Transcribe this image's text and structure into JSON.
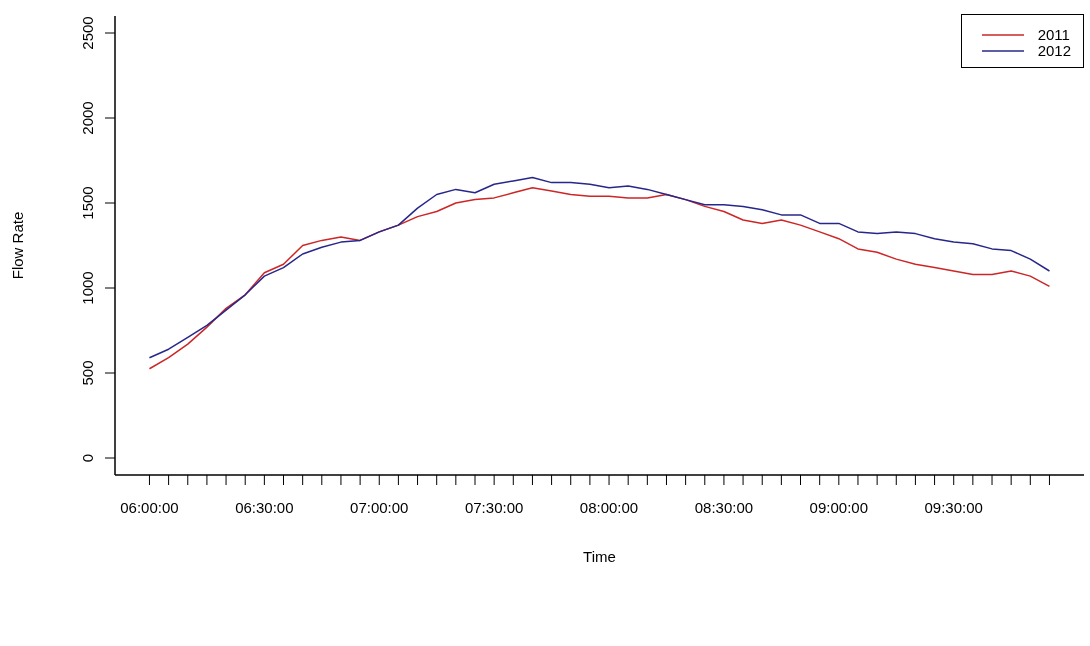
{
  "chart_data": {
    "type": "line",
    "xlabel": "Time",
    "ylabel": "Flow Rate",
    "x": [
      6,
      6.0833,
      6.1667,
      6.25,
      6.3333,
      6.4167,
      6.5,
      6.5833,
      6.6667,
      6.75,
      6.8333,
      6.9167,
      7,
      7.0833,
      7.1667,
      7.25,
      7.3333,
      7.4167,
      7.5,
      7.5833,
      7.6667,
      7.75,
      7.8333,
      7.9167,
      8,
      8.0833,
      8.1667,
      8.25,
      8.3333,
      8.4167,
      8.5,
      8.5833,
      8.6667,
      8.75,
      8.8333,
      8.9167,
      9,
      9.0833,
      9.1667,
      9.25,
      9.3333,
      9.4167,
      9.5,
      9.5833,
      9.6667,
      9.75,
      9.8333,
      9.9167
    ],
    "series": [
      {
        "name": "2011",
        "color": "#cd2626",
        "values": [
          525,
          590,
          670,
          770,
          880,
          960,
          1090,
          1140,
          1250,
          1280,
          1300,
          1280,
          1330,
          1370,
          1420,
          1450,
          1500,
          1520,
          1530,
          1560,
          1590,
          1570,
          1550,
          1540,
          1540,
          1530,
          1530,
          1550,
          1520,
          1480,
          1450,
          1400,
          1380,
          1400,
          1370,
          1330,
          1290,
          1230,
          1210,
          1170,
          1140,
          1120,
          1100,
          1080,
          1080,
          1100,
          1070,
          1010
        ]
      },
      {
        "name": "2012",
        "color": "#27278b",
        "values": [
          590,
          640,
          710,
          780,
          870,
          960,
          1070,
          1120,
          1200,
          1240,
          1270,
          1280,
          1330,
          1370,
          1470,
          1550,
          1580,
          1560,
          1610,
          1630,
          1650,
          1620,
          1620,
          1610,
          1590,
          1600,
          1580,
          1550,
          1520,
          1490,
          1490,
          1480,
          1460,
          1430,
          1430,
          1380,
          1380,
          1330,
          1320,
          1330,
          1320,
          1290,
          1270,
          1260,
          1230,
          1220,
          1170,
          1100
        ]
      }
    ],
    "xlim": [
      5.85,
      10.067
    ],
    "ylim": [
      -100,
      2600
    ],
    "xticks": [
      {
        "value": 6,
        "label": "06:00:00"
      },
      {
        "value": 6.0833,
        "label": null
      },
      {
        "value": 6.1667,
        "label": null
      },
      {
        "value": 6.25,
        "label": null
      },
      {
        "value": 6.3333,
        "label": null
      },
      {
        "value": 6.4167,
        "label": null
      },
      {
        "value": 6.5,
        "label": "06:30:00"
      },
      {
        "value": 6.5833,
        "label": null
      },
      {
        "value": 6.6667,
        "label": null
      },
      {
        "value": 6.75,
        "label": null
      },
      {
        "value": 6.8333,
        "label": null
      },
      {
        "value": 6.9167,
        "label": null
      },
      {
        "value": 7,
        "label": "07:00:00"
      },
      {
        "value": 7.0833,
        "label": null
      },
      {
        "value": 7.1667,
        "label": null
      },
      {
        "value": 7.25,
        "label": null
      },
      {
        "value": 7.3333,
        "label": null
      },
      {
        "value": 7.4167,
        "label": null
      },
      {
        "value": 7.5,
        "label": "07:30:00"
      },
      {
        "value": 7.5833,
        "label": null
      },
      {
        "value": 7.6667,
        "label": null
      },
      {
        "value": 7.75,
        "label": null
      },
      {
        "value": 7.8333,
        "label": null
      },
      {
        "value": 7.9167,
        "label": null
      },
      {
        "value": 8,
        "label": "08:00:00"
      },
      {
        "value": 8.0833,
        "label": null
      },
      {
        "value": 8.1667,
        "label": null
      },
      {
        "value": 8.25,
        "label": null
      },
      {
        "value": 8.3333,
        "label": null
      },
      {
        "value": 8.4167,
        "label": null
      },
      {
        "value": 8.5,
        "label": "08:30:00"
      },
      {
        "value": 8.5833,
        "label": null
      },
      {
        "value": 8.6667,
        "label": null
      },
      {
        "value": 8.75,
        "label": null
      },
      {
        "value": 8.8333,
        "label": null
      },
      {
        "value": 8.9167,
        "label": null
      },
      {
        "value": 9,
        "label": "09:00:00"
      },
      {
        "value": 9.0833,
        "label": null
      },
      {
        "value": 9.1667,
        "label": null
      },
      {
        "value": 9.25,
        "label": null
      },
      {
        "value": 9.3333,
        "label": null
      },
      {
        "value": 9.4167,
        "label": null
      },
      {
        "value": 9.5,
        "label": "09:30:00"
      },
      {
        "value": 9.5833,
        "label": null
      },
      {
        "value": 9.6667,
        "label": null
      },
      {
        "value": 9.75,
        "label": null
      },
      {
        "value": 9.8333,
        "label": null
      },
      {
        "value": 9.9167,
        "label": null
      }
    ],
    "yticks": [
      0,
      500,
      1000,
      1500,
      2000,
      2500
    ],
    "legend": "top right",
    "grid": false,
    "marker": "none",
    "line_style": "solid"
  }
}
